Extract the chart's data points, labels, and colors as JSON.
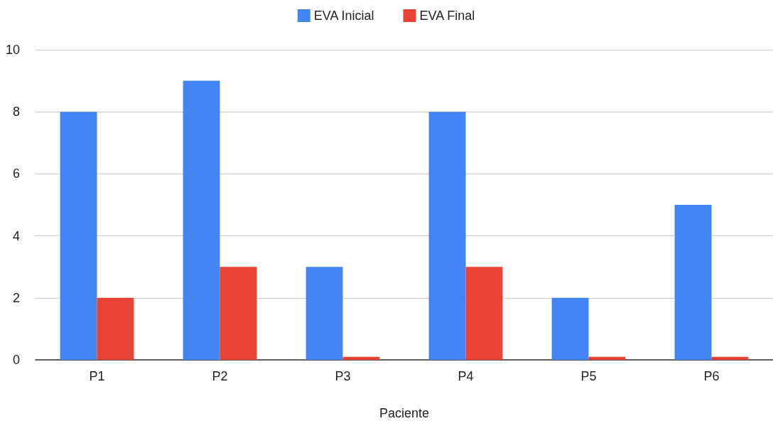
{
  "chart_data": {
    "type": "bar",
    "xlabel": "Paciente",
    "categories": [
      "P1",
      "P2",
      "P3",
      "P4",
      "P5",
      "P6"
    ],
    "series": [
      {
        "name": "EVA Inicial",
        "color": "#4285f4",
        "values": [
          8,
          9,
          3,
          8,
          2,
          5
        ]
      },
      {
        "name": "EVA Final",
        "color": "#ea4335",
        "values": [
          2,
          3,
          0.1,
          3,
          0.1,
          0.1
        ]
      }
    ],
    "ylim": [
      0,
      10
    ],
    "yticks": [
      0,
      2,
      4,
      6,
      8,
      10
    ],
    "grid": "y",
    "legend": "top"
  }
}
